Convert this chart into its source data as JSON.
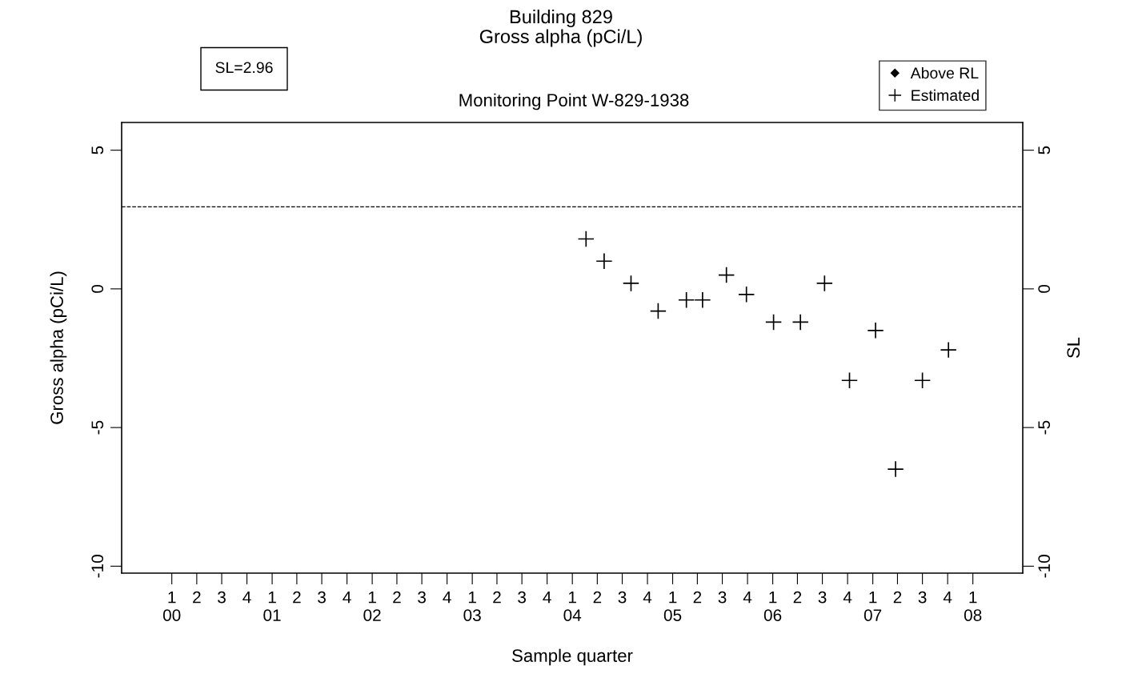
{
  "chart_data": {
    "type": "scatter",
    "title": "Building 829\nGross alpha (pCi/L)",
    "subtitle": "Monitoring Point W-829-1938",
    "xlabel": "Sample quarter",
    "ylabel": "Gross alpha (pCi/L)",
    "y2label": "SL",
    "annotations": [
      "SL=2.96"
    ],
    "xlim": [
      "1999-07-02",
      "2008-07-01"
    ],
    "xticks": [
      {
        "value": "2000-01-01",
        "label": "1\n00"
      },
      {
        "value": "2000-04-01",
        "label": "2"
      },
      {
        "value": "2000-07-01",
        "label": "3"
      },
      {
        "value": "2000-10-01",
        "label": "4"
      },
      {
        "value": "2001-01-01",
        "label": "1\n01"
      },
      {
        "value": "2001-04-01",
        "label": "2"
      },
      {
        "value": "2001-07-01",
        "label": "3"
      },
      {
        "value": "2001-10-01",
        "label": "4"
      },
      {
        "value": "2002-01-01",
        "label": "1\n02"
      },
      {
        "value": "2002-04-01",
        "label": "2"
      },
      {
        "value": "2002-07-01",
        "label": "3"
      },
      {
        "value": "2002-10-01",
        "label": "4"
      },
      {
        "value": "2003-01-01",
        "label": "1\n03"
      },
      {
        "value": "2003-04-01",
        "label": "2"
      },
      {
        "value": "2003-07-01",
        "label": "3"
      },
      {
        "value": "2003-10-01",
        "label": "4"
      },
      {
        "value": "2004-01-01",
        "label": "1\n04"
      },
      {
        "value": "2004-04-01",
        "label": "2"
      },
      {
        "value": "2004-07-01",
        "label": "3"
      },
      {
        "value": "2004-10-01",
        "label": "4"
      },
      {
        "value": "2005-01-01",
        "label": "1\n05"
      },
      {
        "value": "2005-04-01",
        "label": "2"
      },
      {
        "value": "2005-07-01",
        "label": "3"
      },
      {
        "value": "2005-10-01",
        "label": "4"
      },
      {
        "value": "2006-01-01",
        "label": "1\n06"
      },
      {
        "value": "2006-04-01",
        "label": "2"
      },
      {
        "value": "2006-07-01",
        "label": "3"
      },
      {
        "value": "2006-10-01",
        "label": "4"
      },
      {
        "value": "2007-01-01",
        "label": "1\n07"
      },
      {
        "value": "2007-04-01",
        "label": "2"
      },
      {
        "value": "2007-07-01",
        "label": "3"
      },
      {
        "value": "2007-10-01",
        "label": "4"
      },
      {
        "value": "2008-01-01",
        "label": "1\n08"
      }
    ],
    "ylim": [
      -10.25,
      6
    ],
    "yticks": [
      -10,
      -5,
      0,
      5
    ],
    "y2lim": [
      -10.25,
      6
    ],
    "y2ticks": [
      -10,
      -5,
      0,
      5
    ],
    "ref_lines": [
      {
        "axis": "y",
        "value": 2.96,
        "line_style": "dashed",
        "color": "#000000"
      }
    ],
    "legend": "top right",
    "series": [
      {
        "name": "Above RL",
        "color": "#000000",
        "marker": "diamond"
      },
      {
        "name": "Estimated",
        "color": "#000000",
        "marker": "cross",
        "x": [
          "2004-02-20",
          "2004-04-26",
          "2004-08-02",
          "2004-11-09",
          "2005-02-20",
          "2005-04-20",
          "2005-07-16",
          "2005-09-27",
          "2006-01-04",
          "2006-04-12",
          "2006-07-09",
          "2006-10-08",
          "2007-01-11",
          "2007-03-25",
          "2007-07-01",
          "2007-10-04"
        ],
        "values": [
          1.8,
          1.0,
          0.2,
          -0.8,
          -0.4,
          -0.4,
          0.5,
          -0.2,
          -1.2,
          -1.2,
          0.2,
          -3.3,
          -1.5,
          -6.5,
          -3.3,
          -2.2
        ]
      }
    ]
  }
}
